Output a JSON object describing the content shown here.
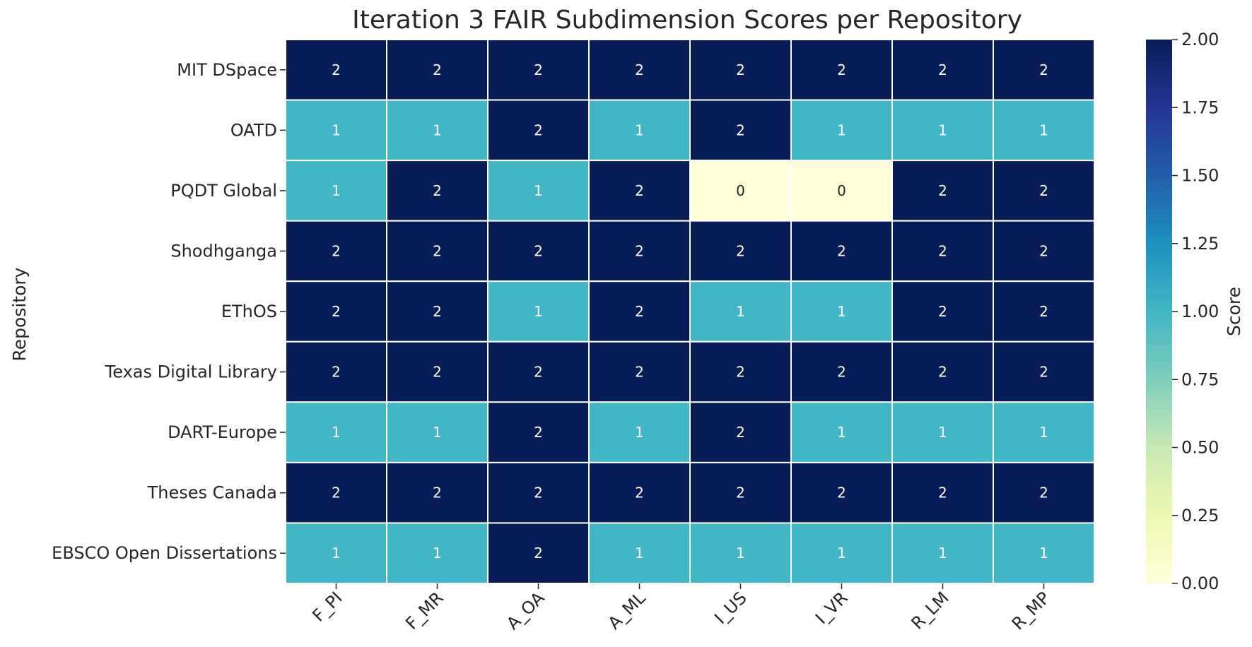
{
  "chart_data": {
    "type": "heatmap",
    "title": "Iteration 3 FAIR Subdimension Scores per Repository",
    "xlabel": "",
    "ylabel": "Repository",
    "x_categories": [
      "F_PI",
      "F_MR",
      "A_OA",
      "A_ML",
      "I_US",
      "I_VR",
      "R_LM",
      "R_MP"
    ],
    "y_categories": [
      "MIT DSpace",
      "OATD",
      "PQDT Global",
      "Shodhganga",
      "EThOS",
      "Texas Digital Library",
      "DART-Europe",
      "Theses Canada",
      "EBSCO Open Dissertations"
    ],
    "values": [
      [
        2,
        2,
        2,
        2,
        2,
        2,
        2,
        2
      ],
      [
        1,
        1,
        2,
        1,
        2,
        1,
        1,
        1
      ],
      [
        1,
        2,
        1,
        2,
        0,
        0,
        2,
        2
      ],
      [
        2,
        2,
        2,
        2,
        2,
        2,
        2,
        2
      ],
      [
        2,
        2,
        1,
        2,
        1,
        1,
        2,
        2
      ],
      [
        2,
        2,
        2,
        2,
        2,
        2,
        2,
        2
      ],
      [
        1,
        1,
        2,
        1,
        2,
        1,
        1,
        1
      ],
      [
        2,
        2,
        2,
        2,
        2,
        2,
        2,
        2
      ],
      [
        1,
        1,
        2,
        1,
        1,
        1,
        1,
        1
      ]
    ],
    "annotations": true,
    "colormap": "YlGnBu",
    "colorbar": {
      "label": "Score",
      "range": [
        0,
        2
      ],
      "ticks": [
        "0.00",
        "0.25",
        "0.50",
        "0.75",
        "1.00",
        "1.25",
        "1.50",
        "1.75",
        "2.00"
      ]
    },
    "colors": {
      "score_0": "#ffffd9",
      "score_1": "#41b6c4",
      "score_2": "#081d58"
    }
  }
}
